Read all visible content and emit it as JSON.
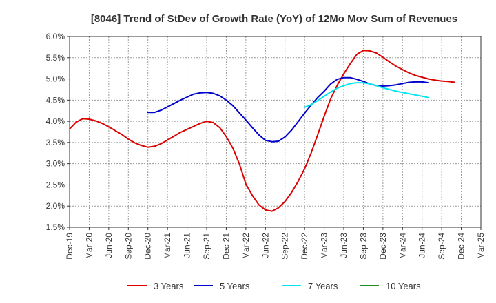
{
  "chart_data": {
    "type": "line",
    "title": "[8046]  Trend of StDev of Growth Rate (YoY) of 12Mo Mov Sum of Revenues",
    "xlabel": "",
    "ylabel": "",
    "ylim": [
      1.5,
      6.0
    ],
    "y_ticks": [
      "1.5%",
      "2.0%",
      "2.5%",
      "3.0%",
      "3.5%",
      "4.0%",
      "4.5%",
      "5.0%",
      "5.5%",
      "6.0%"
    ],
    "categories": [
      "Dec-19",
      "Mar-20",
      "Jun-20",
      "Sep-20",
      "Dec-20",
      "Mar-21",
      "Jun-21",
      "Sep-21",
      "Dec-21",
      "Mar-22",
      "Jun-22",
      "Sep-22",
      "Dec-22",
      "Mar-23",
      "Jun-23",
      "Sep-23",
      "Dec-23",
      "Mar-24",
      "Jun-24",
      "Sep-24",
      "Dec-24",
      "Mar-25"
    ],
    "x_months": [
      0,
      3,
      6,
      9,
      12,
      15,
      18,
      21,
      24,
      27,
      30,
      33,
      36,
      39,
      42,
      45,
      48,
      51,
      54,
      57,
      60,
      63
    ],
    "legend_position": "bottom",
    "series": [
      {
        "name": "3 Years",
        "color": "#dd0000",
        "points": [
          [
            0,
            3.82
          ],
          [
            1,
            3.98
          ],
          [
            2,
            4.06
          ],
          [
            3,
            4.05
          ],
          [
            4,
            4.01
          ],
          [
            5,
            3.95
          ],
          [
            6,
            3.87
          ],
          [
            7,
            3.78
          ],
          [
            8,
            3.69
          ],
          [
            9,
            3.58
          ],
          [
            10,
            3.49
          ],
          [
            11,
            3.43
          ],
          [
            12,
            3.39
          ],
          [
            13,
            3.41
          ],
          [
            14,
            3.47
          ],
          [
            15,
            3.56
          ],
          [
            16,
            3.65
          ],
          [
            17,
            3.74
          ],
          [
            18,
            3.81
          ],
          [
            19,
            3.88
          ],
          [
            20,
            3.95
          ],
          [
            21,
            4.0
          ],
          [
            22,
            3.97
          ],
          [
            23,
            3.85
          ],
          [
            24,
            3.64
          ],
          [
            25,
            3.37
          ],
          [
            26,
            3.0
          ],
          [
            27,
            2.52
          ],
          [
            28,
            2.25
          ],
          [
            29,
            2.03
          ],
          [
            30,
            1.91
          ],
          [
            31,
            1.88
          ],
          [
            32,
            1.96
          ],
          [
            33,
            2.11
          ],
          [
            34,
            2.32
          ],
          [
            35,
            2.58
          ],
          [
            36,
            2.88
          ],
          [
            37,
            3.25
          ],
          [
            38,
            3.68
          ],
          [
            39,
            4.12
          ],
          [
            40,
            4.53
          ],
          [
            41,
            4.85
          ],
          [
            42,
            5.12
          ],
          [
            43,
            5.36
          ],
          [
            44,
            5.58
          ],
          [
            45,
            5.67
          ],
          [
            46,
            5.66
          ],
          [
            47,
            5.61
          ],
          [
            48,
            5.51
          ],
          [
            49,
            5.4
          ],
          [
            50,
            5.3
          ],
          [
            51,
            5.22
          ],
          [
            52,
            5.14
          ],
          [
            53,
            5.08
          ],
          [
            54,
            5.04
          ],
          [
            55,
            5.0
          ],
          [
            56,
            4.97
          ],
          [
            57,
            4.95
          ],
          [
            58,
            4.94
          ],
          [
            59,
            4.92
          ]
        ]
      },
      {
        "name": "5 Years",
        "color": "#0000cc",
        "points": [
          [
            12,
            4.21
          ],
          [
            13,
            4.21
          ],
          [
            14,
            4.26
          ],
          [
            15,
            4.34
          ],
          [
            16,
            4.42
          ],
          [
            17,
            4.5
          ],
          [
            18,
            4.57
          ],
          [
            19,
            4.64
          ],
          [
            20,
            4.67
          ],
          [
            21,
            4.68
          ],
          [
            22,
            4.66
          ],
          [
            23,
            4.6
          ],
          [
            24,
            4.5
          ],
          [
            25,
            4.37
          ],
          [
            26,
            4.2
          ],
          [
            27,
            4.03
          ],
          [
            28,
            3.85
          ],
          [
            29,
            3.68
          ],
          [
            30,
            3.55
          ],
          [
            31,
            3.52
          ],
          [
            32,
            3.53
          ],
          [
            33,
            3.63
          ],
          [
            34,
            3.79
          ],
          [
            35,
            3.99
          ],
          [
            36,
            4.19
          ],
          [
            37,
            4.38
          ],
          [
            38,
            4.56
          ],
          [
            39,
            4.71
          ],
          [
            40,
            4.88
          ],
          [
            41,
            4.99
          ],
          [
            42,
            5.03
          ],
          [
            43,
            5.03
          ],
          [
            44,
            4.99
          ],
          [
            45,
            4.94
          ],
          [
            46,
            4.88
          ],
          [
            47,
            4.84
          ],
          [
            48,
            4.83
          ],
          [
            49,
            4.84
          ],
          [
            50,
            4.86
          ],
          [
            51,
            4.89
          ],
          [
            52,
            4.92
          ],
          [
            53,
            4.93
          ],
          [
            54,
            4.93
          ],
          [
            55,
            4.91
          ]
        ]
      },
      {
        "name": "7 Years",
        "color": "#00e5ee",
        "points": [
          [
            36,
            4.33
          ],
          [
            37,
            4.39
          ],
          [
            38,
            4.49
          ],
          [
            39,
            4.59
          ],
          [
            40,
            4.69
          ],
          [
            41,
            4.78
          ],
          [
            42,
            4.84
          ],
          [
            43,
            4.89
          ],
          [
            44,
            4.91
          ],
          [
            45,
            4.91
          ],
          [
            46,
            4.88
          ],
          [
            47,
            4.84
          ],
          [
            48,
            4.79
          ],
          [
            49,
            4.75
          ],
          [
            50,
            4.71
          ],
          [
            51,
            4.68
          ],
          [
            52,
            4.65
          ],
          [
            53,
            4.62
          ],
          [
            54,
            4.59
          ],
          [
            55,
            4.56
          ]
        ]
      },
      {
        "name": "10 Years",
        "color": "#228b22",
        "points": []
      }
    ]
  }
}
